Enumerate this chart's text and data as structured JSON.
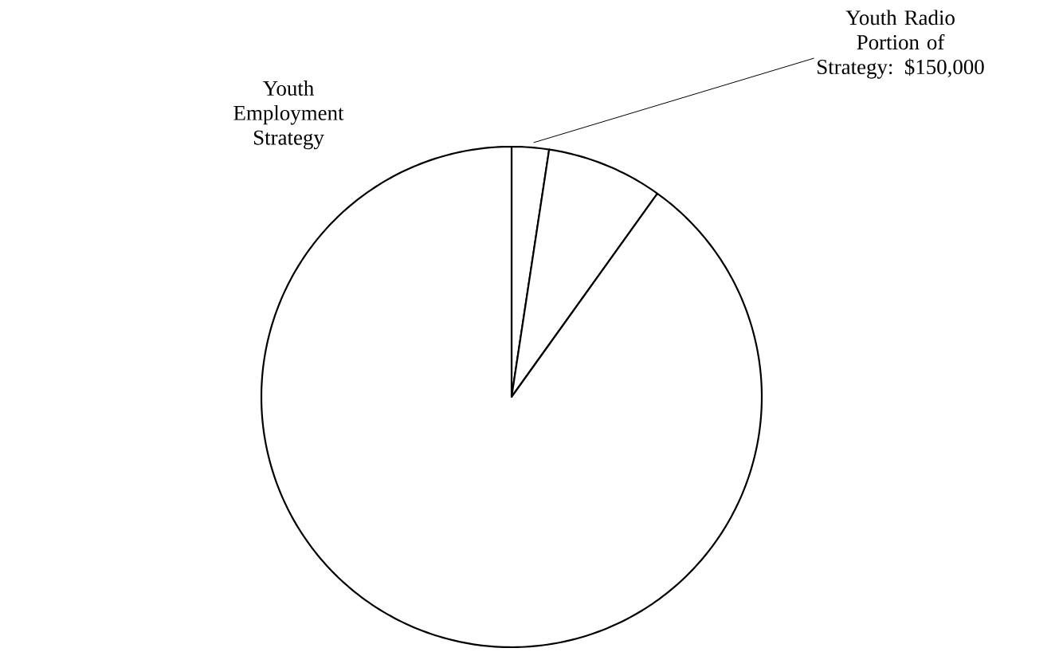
{
  "chart_data": {
    "type": "pie",
    "categories": [
      "Youth Radio Portion of Strategy: $150,000",
      null,
      "Youth Employment Strategy"
    ],
    "values": [
      2.4,
      7.5,
      90.1
    ],
    "colors": [
      "#ffffff",
      "#ffffff",
      "#ffffff"
    ]
  }
}
